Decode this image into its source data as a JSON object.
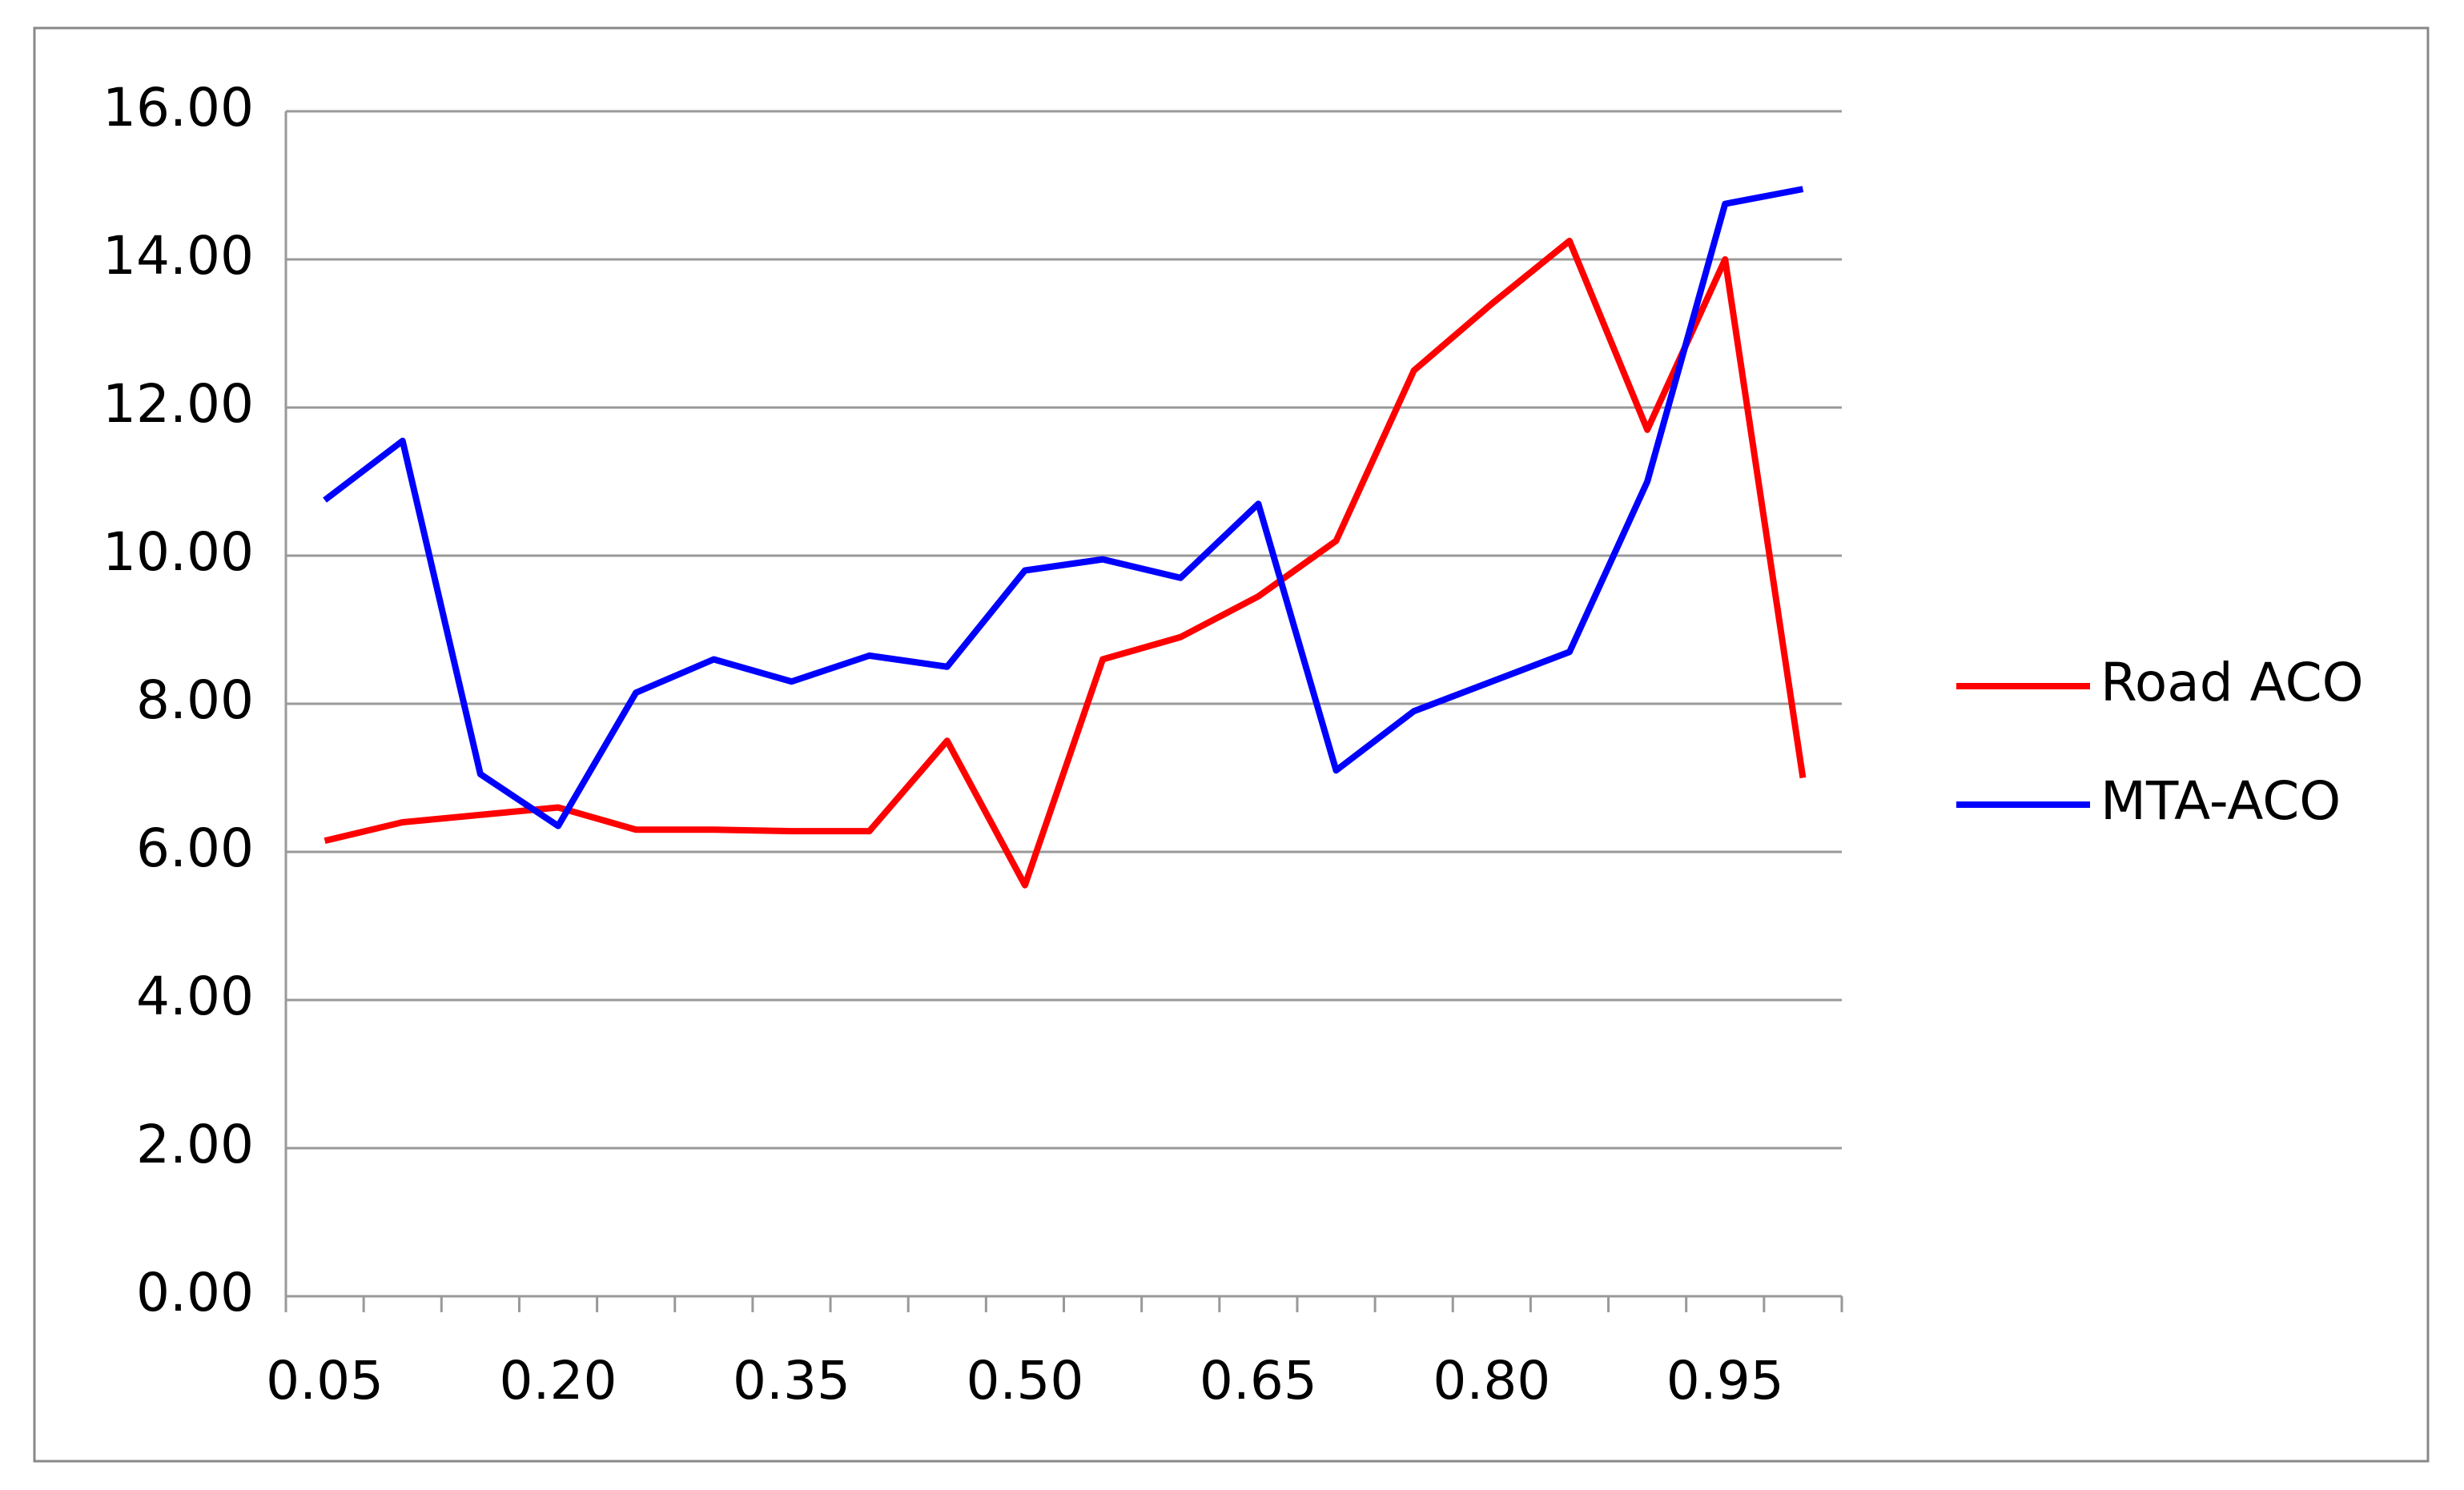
{
  "chart_data": {
    "type": "line",
    "categories": [
      "0.05",
      null,
      null,
      "0.20",
      null,
      null,
      "0.35",
      null,
      null,
      "0.50",
      null,
      null,
      "0.65",
      null,
      null,
      "0.80",
      null,
      null,
      "0.95",
      null
    ],
    "series": [
      {
        "name": "Road ACO",
        "color": "#ff0000",
        "values": [
          6.15,
          6.4,
          6.5,
          6.6,
          6.3,
          6.3,
          6.28,
          6.28,
          7.5,
          5.55,
          8.6,
          8.9,
          9.45,
          10.2,
          12.5,
          13.4,
          14.25,
          11.7,
          14.0,
          7.0
        ]
      },
      {
        "name": "MTA-ACO",
        "color": "#0000ff",
        "values": [
          10.75,
          11.55,
          7.05,
          6.35,
          8.15,
          8.6,
          8.3,
          8.65,
          8.5,
          9.8,
          9.95,
          9.7,
          10.7,
          7.1,
          7.9,
          8.3,
          8.7,
          11.0,
          14.75,
          14.95
        ]
      }
    ],
    "ylim": [
      0,
      16
    ],
    "yticks": [
      {
        "value": 0,
        "label": "0.00"
      },
      {
        "value": 2,
        "label": "2.00"
      },
      {
        "value": 4,
        "label": "4.00"
      },
      {
        "value": 6,
        "label": "6.00"
      },
      {
        "value": 8,
        "label": "8.00"
      },
      {
        "value": 10,
        "label": "10.00"
      },
      {
        "value": 12,
        "label": "12.00"
      },
      {
        "value": 14,
        "label": "14.00"
      },
      {
        "value": 16,
        "label": "16.00"
      }
    ],
    "grid": true,
    "legend": "right"
  }
}
